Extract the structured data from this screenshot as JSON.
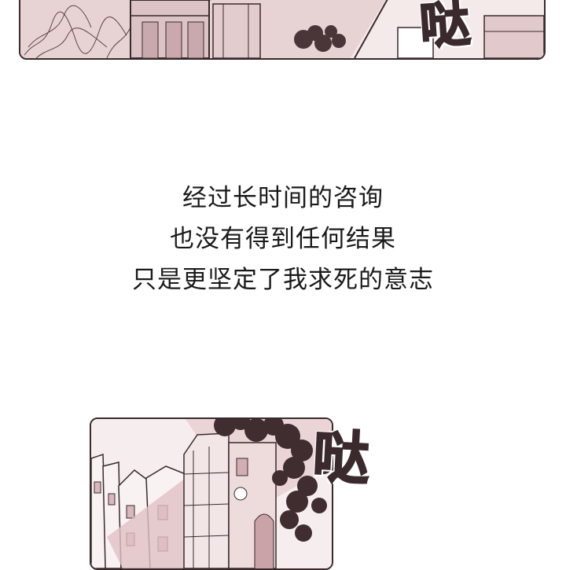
{
  "panels": {
    "top": {
      "sfx": "哒",
      "palette": {
        "fill": "#ead7d7",
        "ink": "#3a2a2c",
        "accent": "#d9b8bc"
      }
    },
    "bottom": {
      "sfx": "哒",
      "palette": {
        "fill": "#f1e2e2",
        "ink": "#3a2a2c",
        "accent": "#cfa6ad"
      }
    }
  },
  "narration": {
    "lines": [
      "经过长时间的咨询",
      "也没有得到任何结果",
      "只是更坚定了我求死的意志"
    ]
  }
}
